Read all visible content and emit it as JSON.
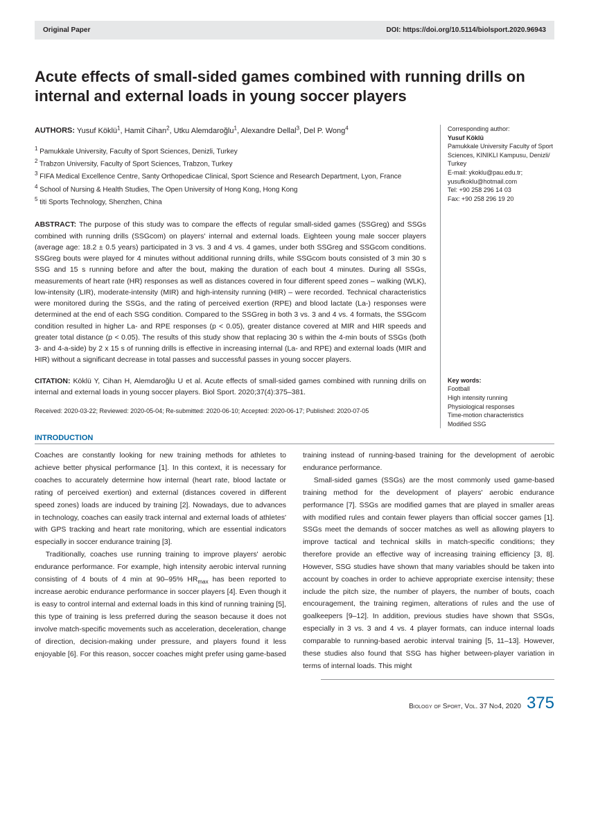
{
  "header": {
    "left": "Original Paper",
    "right": "DOI: https://doi.org/10.5114/biolsport.2020.96943"
  },
  "title": "Acute effects of small-sided games combined with running drills on internal and external loads in young soccer players",
  "authors_label": "AUTHORS:",
  "authors_html": "Yusuf Köklü<sup>1</sup>, Hamit Cihan<sup>2</sup>, Utku Alemdaroğlu<sup>1</sup>, Alexandre Dellal<sup>3</sup>, Del P. Wong<sup>4</sup>",
  "affiliations": [
    "1 Pamukkale University, Faculty of Sport Sciences, Denizli, Turkey",
    "2 Trabzon University, Faculty of Sport Sciences, Trabzon, Turkey",
    "3 FIFA Medical Excellence Centre, Santy Orthopedicae Clinical, Sport Science and Research Department, Lyon, France",
    "4 School of Nursing & Health Studies, The Open University of Hong Kong, Hong Kong",
    "5 titi Sports Technology, Shenzhen, China"
  ],
  "abstract_label": "ABSTRACT:",
  "abstract_text": "The purpose of this study was to compare the effects of regular small-sided games (SSGreg) and SSGs combined with running drills (SSGcom) on players' internal and external loads. Eighteen young male soccer players (average age: 18.2 ± 0.5 years) participated in 3 vs. 3 and 4 vs. 4 games, under both SSGreg and SSGcom conditions. SSGreg bouts were played for 4 minutes without additional running drills, while SSGcom bouts consisted of 3 min 30 s SSG and 15 s running before and after the bout, making the duration of each bout 4 minutes. During all SSGs, measurements of heart rate (HR) responses as well as distances covered in four different speed zones – walking (WLK), low-intensity (LIR), moderate-intensity (MIR) and high-intensity running (HIR) – were recorded. Technical characteristics were monitored during the SSGs, and the rating of perceived exertion (RPE) and blood lactate (La-) responses were determined at the end of each SSG condition. Compared to the SSGreg in both 3 vs. 3 and 4 vs. 4 formats, the SSGcom condition resulted in higher La- and RPE responses (p < 0.05), greater distance covered at MIR and HIR speeds and greater total distance (p < 0.05). The results of this study show that replacing 30 s within the 4-min bouts of SSGs (both 3- and 4-a-side) by 2 x 15 s of running drills is effective in increasing internal (La- and RPE) and external loads (MIR and HIR) without a significant decrease in total passes and successful passes in young soccer players.",
  "citation_label": "CITATION:",
  "citation_text": "Köklü Y, Cihan H, Alemdaroğlu U et al. Acute effects of small-sided games combined with running drills on internal and external loads in young soccer players. Biol Sport. 2020;37(4):375–381.",
  "dates": "Received: 2020-03-22; Reviewed: 2020-05-04; Re-submitted: 2020-06-10; Accepted: 2020-06-17; Published: 2020-07-05",
  "sidebar": {
    "corr_label": "Corresponding author:",
    "corr_name": "Yusuf Köklü",
    "corr_addr": "Pamukkale University Faculty of Sport Sciences, KINIKLI Kampusu, Denizli/ Turkey",
    "corr_email": "E-mail: ykoklu@pau.edu.tr; yusufkoklu@hotmail.com",
    "corr_tel": "Tel: +90 258 296 14 03",
    "corr_fax": "Fax: +90 258 296 19 20",
    "keywords_label": "Key words:",
    "keywords": [
      "Football",
      "High intensity running",
      "Physiological responses",
      "Time-motion characteristics",
      "Modified SSG"
    ]
  },
  "intro_heading": "INTRODUCTION",
  "body": {
    "p1": "Coaches are constantly looking for new training methods for athletes to achieve better physical performance [1]. In this context, it is necessary for coaches to accurately determine how internal (heart rate, blood lactate or rating of perceived exertion) and external (distances covered in different speed zones) loads are induced by training [2]. Nowadays, due to advances in technology, coaches can easily track internal and external loads of athletes' with GPS tracking and heart rate monitoring, which are essential indicators especially in soccer endurance training [3].",
    "p2a": "Traditionally, coaches use running training to improve players' aerobic endurance performance. For example, high intensity aerobic interval running consisting of 4 bouts of 4 min at 90–95% HR",
    "p2b": " has been reported to increase aerobic endurance performance in soccer players [4]. Even though it is easy to control internal and external loads in this kind of running training [5], this type of training is less preferred during the season because it does not involve match-specific movements such as acceleration, deceleration, change of direction, decision-making under pressure, and players found it less enjoyable [6]. For this reason, soccer coaches might prefer using game-based training instead of running-based training for the development of aerobic endurance performance.",
    "p3": "Small-sided games (SSGs) are the most commonly used game-based training method for the development of players' aerobic endurance performance [7]. SSGs are modified games that are played in smaller areas with modified rules and contain fewer players than official soccer games [1]. SSGs meet the demands of soccer matches as well as allowing players to improve tactical and technical skills in match-specific conditions; they therefore provide an effective way of increasing training efficiency [3, 8]. However, SSG studies have shown that many variables should be taken into account by coaches in order to achieve appropriate exercise intensity; these include the pitch size, the number of players, the number of bouts, coach encouragement, the training regimen, alterations of rules and the use of goalkeepers [9–12]. In addition, previous studies have shown that SSGs, especially in 3 vs. 3 and 4 vs. 4 player formats, can induce internal loads comparable to running-based aerobic interval training [5, 11–13]. However, these studies also found that SSG has higher between-player variation in terms of internal loads. This might"
  },
  "footer": {
    "journal": "Biology of Sport, Vol. 37 No4, 2020",
    "page": "375"
  }
}
